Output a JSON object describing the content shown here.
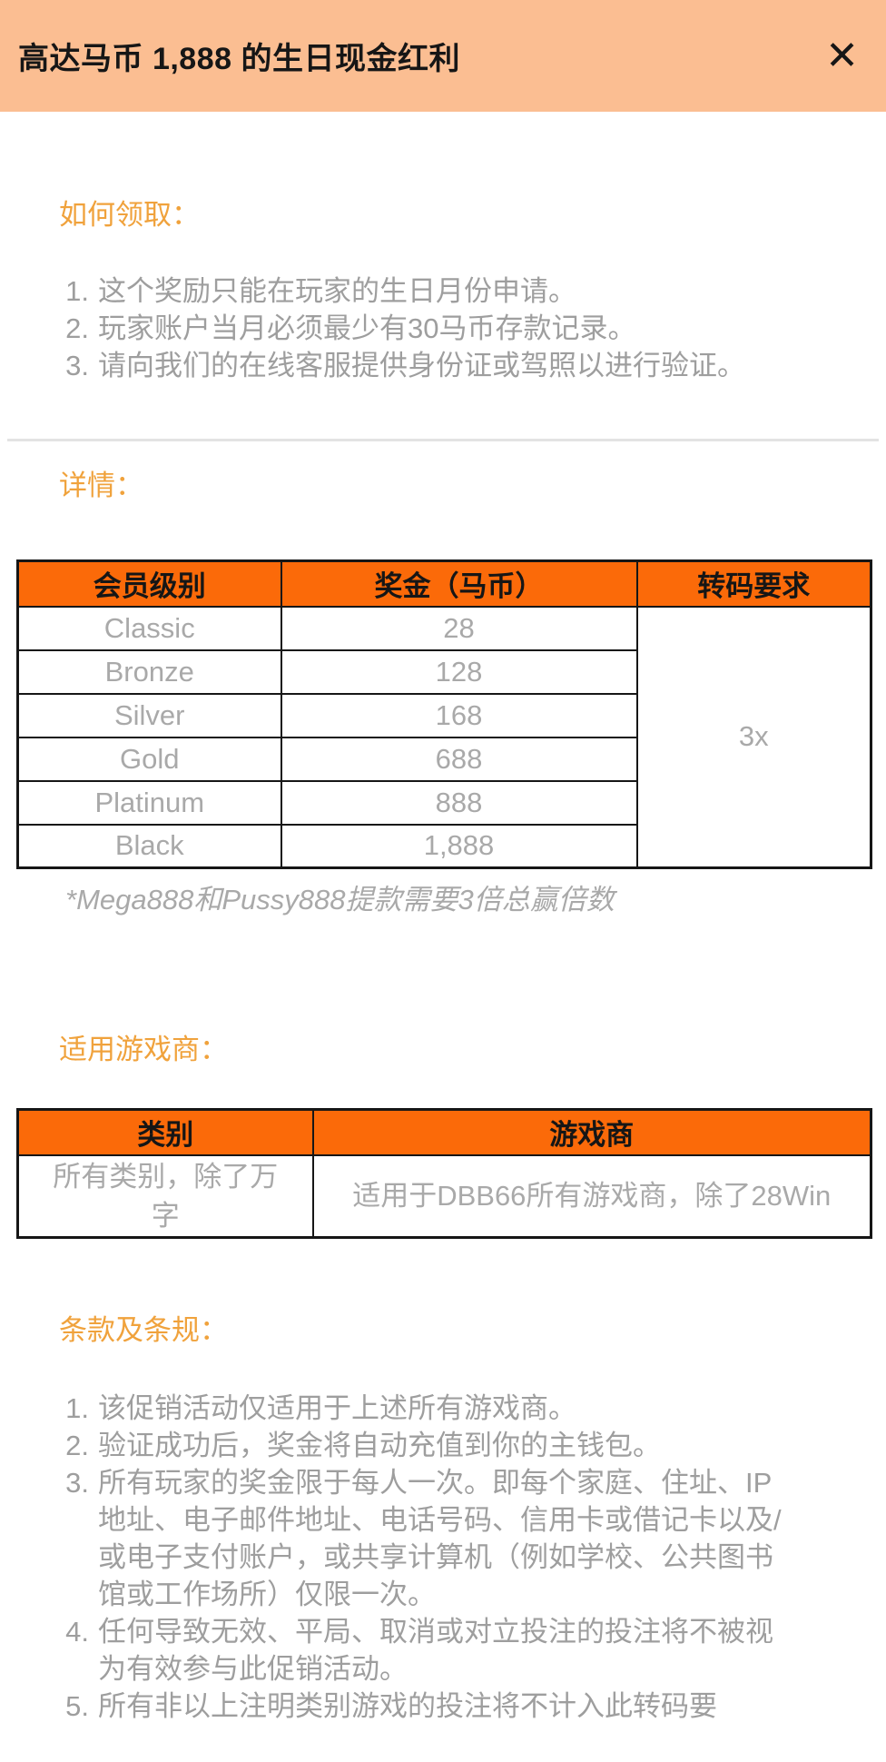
{
  "modal": {
    "title": "高达马币 1,888 的生日现金红利",
    "close_icon": "✕"
  },
  "sections": {
    "how_to_claim": {
      "title": "如何领取：",
      "items": [
        "这个奖励只能在玩家的生日月份申请。",
        "玩家账户当月必须最少有30马币存款记录。",
        "请向我们的在线客服提供身份证或驾照以进行验证。"
      ]
    },
    "details": {
      "title": "详情：",
      "table": {
        "headers": [
          "会员级别",
          "奖金（马币）",
          "转码要求"
        ],
        "rows": [
          [
            "Classic",
            "28"
          ],
          [
            "Bronze",
            "128"
          ],
          [
            "Silver",
            "168"
          ],
          [
            "Gold",
            "688"
          ],
          [
            "Platinum",
            "888"
          ],
          [
            "Black",
            "1,888"
          ]
        ],
        "merged_requirement": "3x"
      },
      "note": "*Mega888和Pussy888提款需要3倍总赢倍数"
    },
    "providers": {
      "title": "适用游戏商：",
      "table": {
        "headers": [
          "类别",
          "游戏商"
        ],
        "rows": [
          [
            "所有类别，除了万字",
            "适用于DBB66所有游戏商，除了28Win"
          ]
        ]
      }
    },
    "terms": {
      "title": "条款及条规：",
      "items": [
        "该促销活动仅适用于上述所有游戏商。",
        "验证成功后，奖金将自动充值到你的主钱包。",
        "所有玩家的奖金限于每人一次。即每个家庭、住址、IP地址、电子邮件地址、电话号码、信用卡或借记卡以及/或电子支付账户，或共享计算机（例如学校、公共图书馆或工作场所）仅限一次。",
        "任何导致无效、平局、取消或对立投注的投注将不被视为有效参与此促销活动。",
        "所有非以上注明类别游戏的投注将不计入此转码要"
      ]
    }
  },
  "colors": {
    "header_bg": "#fbbe92",
    "accent_orange": "#f0a23c",
    "table_header_bg": "#fb6a09",
    "text_dark": "#161616",
    "text_gray": "#9e9e9e",
    "cell_gray": "#a9a9a9",
    "border": "#161616",
    "divider": "#e3e3e3"
  }
}
